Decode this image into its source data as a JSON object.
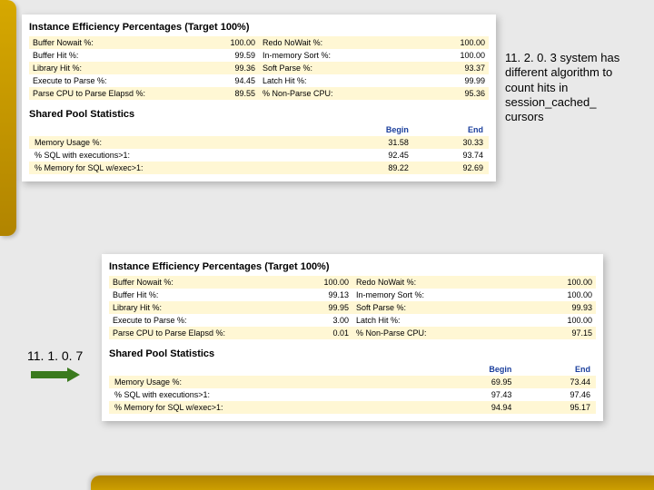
{
  "colors": {
    "page_bg": "#e9e9e9",
    "panel_bg": "#ffffff",
    "row_alt_bg": "#fff7d4",
    "header_text": "#1b3f9c",
    "gold_gradient_from": "#d6a800",
    "gold_gradient_to": "#b18400",
    "arrow_color": "#3a7a1e"
  },
  "top": {
    "eff_title": "Instance Efficiency Percentages (Target 100%)",
    "eff_rows": [
      {
        "l1": "Buffer Nowait %:",
        "v1": "100.00",
        "l2": "Redo NoWait %:",
        "v2": "100.00"
      },
      {
        "l1": "Buffer Hit %:",
        "v1": "99.59",
        "l2": "In-memory Sort %:",
        "v2": "100.00"
      },
      {
        "l1": "Library Hit %:",
        "v1": "99.36",
        "l2": "Soft Parse %:",
        "v2": "93.37"
      },
      {
        "l1": "Execute to Parse %:",
        "v1": "94.45",
        "l2": "Latch Hit %:",
        "v2": "99.99"
      },
      {
        "l1": "Parse CPU to Parse Elapsd %:",
        "v1": "89.55",
        "l2": "% Non-Parse CPU:",
        "v2": "95.36"
      }
    ],
    "pool_title": "Shared Pool Statistics",
    "pool_headers": {
      "begin": "Begin",
      "end": "End"
    },
    "pool_rows": [
      {
        "l": "Memory Usage %:",
        "b": "31.58",
        "e": "30.33"
      },
      {
        "l": "% SQL with executions>1:",
        "b": "92.45",
        "e": "93.74"
      },
      {
        "l": "% Memory for SQL w/exec>1:",
        "b": "89.22",
        "e": "92.69"
      }
    ]
  },
  "bot": {
    "eff_title": "Instance Efficiency Percentages (Target 100%)",
    "eff_rows": [
      {
        "l1": "Buffer Nowait %:",
        "v1": "100.00",
        "l2": "Redo NoWait %:",
        "v2": "100.00"
      },
      {
        "l1": "Buffer Hit %:",
        "v1": "99.13",
        "l2": "In-memory Sort %:",
        "v2": "100.00"
      },
      {
        "l1": "Library Hit %:",
        "v1": "99.95",
        "l2": "Soft Parse %:",
        "v2": "99.93"
      },
      {
        "l1": "Execute to Parse %:",
        "v1": "3.00",
        "l2": "Latch Hit %:",
        "v2": "100.00"
      },
      {
        "l1": "Parse CPU to Parse Elapsd %:",
        "v1": "0.01",
        "l2": "% Non-Parse CPU:",
        "v2": "97.15"
      }
    ],
    "pool_title": "Shared Pool Statistics",
    "pool_headers": {
      "begin": "Begin",
      "end": "End"
    },
    "pool_rows": [
      {
        "l": "Memory Usage %:",
        "b": "69.95",
        "e": "73.44"
      },
      {
        "l": "% SQL with executions>1:",
        "b": "97.43",
        "e": "97.46"
      },
      {
        "l": "% Memory for SQL w/exec>1:",
        "b": "94.94",
        "e": "95.17"
      }
    ]
  },
  "notes": {
    "right": "11. 2. 0. 3 system has different algorithm to count hits in session_cached_ cursors",
    "left": "11. 1. 0. 7"
  }
}
